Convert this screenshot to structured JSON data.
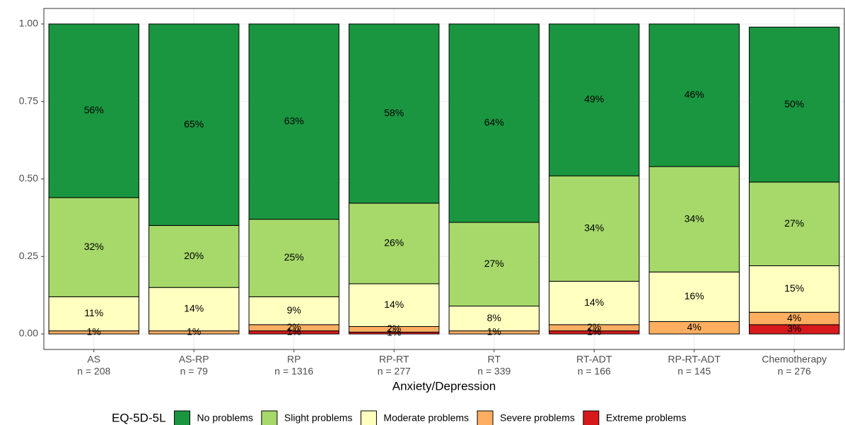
{
  "chart_data": {
    "type": "stacked_bar",
    "categories": [
      "AS",
      "AS-RP",
      "RP",
      "RP-RT",
      "RT",
      "RT-ADT",
      "RP-RT-ADT",
      "Chemotherapy"
    ],
    "counts": [
      "n = 208",
      "n = 79",
      "n = 1316",
      "n = 277",
      "n = 339",
      "n = 166",
      "n = 145",
      "n = 276"
    ],
    "x_label": "Anxiety/Depression",
    "legend_title": "EQ-5D-5L",
    "legend_position": "bottom",
    "grid": true,
    "ylim": [
      -0.05,
      1.05
    ],
    "yticks": [
      {
        "value": 0,
        "label": "0.00"
      },
      {
        "value": 0.25,
        "label": "0.25"
      },
      {
        "value": 0.5,
        "label": "0.50"
      },
      {
        "value": 0.75,
        "label": "0.75"
      },
      {
        "value": 1,
        "label": "1.00"
      }
    ],
    "series": [
      {
        "name": "No problems",
        "color": "#1a9641",
        "values": [
          0.56,
          0.65,
          0.63,
          0.578,
          0.64,
          0.49,
          0.46,
          0.5
        ],
        "value_labels": [
          "56%",
          "65%",
          "63%",
          "58%",
          "64%",
          "49%",
          "46%",
          "50%"
        ]
      },
      {
        "name": "Slight problems",
        "color": "#a6d96a",
        "values": [
          0.32,
          0.2,
          0.25,
          0.26,
          0.27,
          0.34,
          0.34,
          0.27
        ],
        "value_labels": [
          "32%",
          "20%",
          "25%",
          "26%",
          "27%",
          "34%",
          "34%",
          "27%"
        ]
      },
      {
        "name": "Moderate problems",
        "color": "#ffffbf",
        "values": [
          0.11,
          0.14,
          0.09,
          0.138,
          0.08,
          0.14,
          0.16,
          0.15
        ],
        "value_labels": [
          "11%",
          "14%",
          "9%",
          "14%",
          "8%",
          "14%",
          "16%",
          "15%"
        ]
      },
      {
        "name": "Severe problems",
        "color": "#fdae61",
        "values": [
          0.01,
          0.01,
          0.02,
          0.018,
          0.01,
          0.02,
          0.04,
          0.04
        ],
        "value_labels": [
          "1%",
          "1%",
          "2%",
          "2%",
          "1%",
          "2%",
          "4%",
          "4%"
        ]
      },
      {
        "name": "Extreme problems",
        "color": "#d7191c",
        "values": [
          0,
          0,
          0.01,
          0.006,
          0,
          0.01,
          0,
          0.03
        ],
        "value_labels": [
          null,
          null,
          "1%",
          "1%",
          null,
          "1%",
          null,
          "3%"
        ]
      }
    ]
  }
}
